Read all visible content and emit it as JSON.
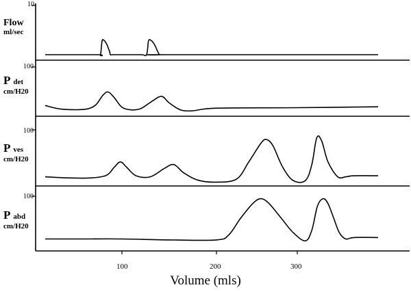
{
  "chart_data": {
    "type": "line",
    "xlabel": "Volume (mls)",
    "x_ticks": [
      100,
      200,
      300
    ],
    "xlim": [
      0,
      400
    ],
    "panels": [
      {
        "id": "flow",
        "label_main": "Flow",
        "label_sub": "",
        "unit": "ml/sec",
        "ymax_label": "10",
        "ylim": [
          0,
          10
        ],
        "series": {
          "x": [
            0,
            68,
            72,
            74,
            76,
            80,
            84,
            85,
            90,
            120,
            126,
            128,
            130,
            134,
            138,
            140,
            145,
            400
          ],
          "y": [
            0,
            0,
            0,
            2.7,
            3.0,
            2.2,
            0.6,
            0,
            0,
            0,
            0,
            2.7,
            3.0,
            2.2,
            0.6,
            0,
            0,
            0
          ]
        }
      },
      {
        "id": "pdet",
        "label_main": "P",
        "label_sub": "det",
        "unit": "cm/H20",
        "ymax_label": "100",
        "ylim": [
          0,
          100
        ],
        "series": {
          "x": [
            0,
            20,
            50,
            65,
            75,
            82,
            90,
            100,
            110,
            120,
            132,
            142,
            150,
            162,
            175,
            200,
            300,
            400
          ],
          "y": [
            12,
            4,
            3,
            12,
            35,
            43,
            30,
            8,
            2,
            5,
            22,
            33,
            18,
            2,
            0,
            6,
            7,
            9
          ]
        }
      },
      {
        "id": "pves",
        "label_main": "P",
        "label_sub": "ves",
        "unit": "cm/H20",
        "ymax_label": "100",
        "ylim": [
          0,
          100
        ],
        "series": {
          "x": [
            0,
            30,
            60,
            80,
            90,
            98,
            105,
            115,
            130,
            145,
            155,
            165,
            180,
            200,
            225,
            240,
            255,
            262,
            270,
            282,
            295,
            310,
            318,
            324,
            330,
            338,
            350,
            360,
            370,
            400
          ],
          "y": [
            12,
            10,
            10,
            15,
            30,
            40,
            30,
            14,
            12,
            28,
            35,
            20,
            6,
            2,
            8,
            40,
            75,
            82,
            70,
            30,
            5,
            5,
            35,
            85,
            80,
            40,
            12,
            12,
            14,
            14
          ]
        }
      },
      {
        "id": "pabd",
        "label_main": "P",
        "label_sub": "abd",
        "unit": "cm/H20",
        "ymax_label": "100",
        "ylim": [
          0,
          100
        ],
        "series": {
          "x": [
            0,
            50,
            100,
            150,
            200,
            215,
            230,
            245,
            255,
            265,
            280,
            295,
            310,
            318,
            325,
            332,
            338,
            345,
            352,
            360,
            370,
            400
          ],
          "y": [
            12,
            12,
            12,
            10,
            10,
            20,
            55,
            85,
            95,
            85,
            55,
            25,
            8,
            30,
            80,
            95,
            85,
            55,
            25,
            12,
            15,
            15
          ]
        }
      }
    ]
  }
}
